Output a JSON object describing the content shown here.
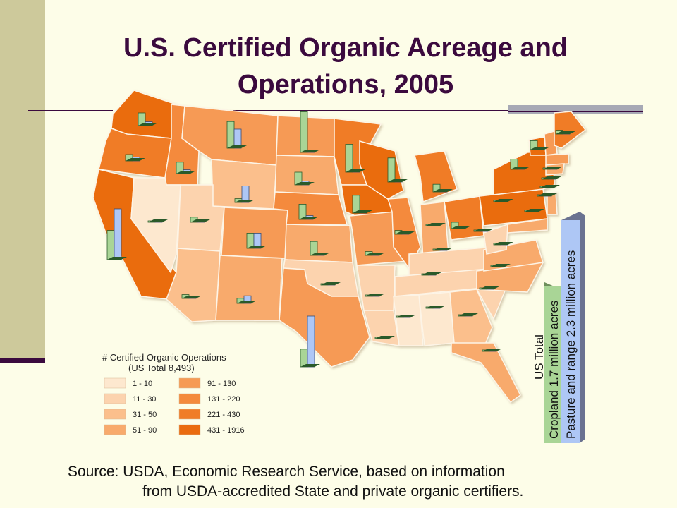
{
  "title_line1": "U.S. Certified Organic Acreage and",
  "title_line2": "Operations, 2005",
  "legend": {
    "title": "# Certified Organic Operations",
    "subtitle": "(US Total 8,493)",
    "bins": [
      {
        "label": "1 - 10",
        "color": "#fde8cf"
      },
      {
        "label": "11 - 30",
        "color": "#fcd3ae"
      },
      {
        "label": "31 - 50",
        "color": "#fbbf8c"
      },
      {
        "label": "51 - 90",
        "color": "#f8aa6c"
      },
      {
        "label": "91 - 130",
        "color": "#f69a54"
      },
      {
        "label": "131 - 220",
        "color": "#f48a3c"
      },
      {
        "label": "221 - 430",
        "color": "#f07c26"
      },
      {
        "label": "431 - 1916",
        "color": "#ea6c10"
      }
    ]
  },
  "us_total": {
    "heading": "US Total",
    "cropland": "Cropland 1.7 million acres",
    "pasture": "Pasture  and range 2.3 million acres"
  },
  "colors": {
    "cropland_bar": "#a9d596",
    "pasture_bar": "#aec7f5",
    "bar_base": "#2a5a2a",
    "total_frame": "#6a7290"
  },
  "states": [
    {
      "name": "Washington",
      "bin": 7,
      "cropland": 0.1,
      "pasture": 0.03
    },
    {
      "name": "Oregon",
      "bin": 6,
      "cropland": 0.05,
      "pasture": 0.03
    },
    {
      "name": "California",
      "bin": 7,
      "cropland": 0.23,
      "pasture": 0.4
    },
    {
      "name": "Idaho",
      "bin": 5,
      "cropland": 0.09,
      "pasture": 0.03
    },
    {
      "name": "Nevada",
      "bin": 0,
      "cropland": 0.003,
      "pasture": 0.003
    },
    {
      "name": "Montana",
      "bin": 4,
      "cropland": 0.21,
      "pasture": 0.15
    },
    {
      "name": "Wyoming",
      "bin": 2,
      "cropland": 0.03,
      "pasture": 0.13
    },
    {
      "name": "Utah",
      "bin": 1,
      "cropland": 0.04,
      "pasture": 0.02
    },
    {
      "name": "Colorado",
      "bin": 4,
      "cropland": 0.12,
      "pasture": 0.12
    },
    {
      "name": "Arizona",
      "bin": 2,
      "cropland": 0.03,
      "pasture": 0.01
    },
    {
      "name": "New Mexico",
      "bin": 3,
      "cropland": 0.04,
      "pasture": 0.06
    },
    {
      "name": "North Dakota",
      "bin": 4,
      "cropland": 0.32,
      "pasture": 0.02
    },
    {
      "name": "South Dakota",
      "bin": 3,
      "cropland": 0.1,
      "pasture": 0.03
    },
    {
      "name": "Nebraska",
      "bin": 5,
      "cropland": 0.12,
      "pasture": 0.03
    },
    {
      "name": "Kansas",
      "bin": 3,
      "cropland": 0.11,
      "pasture": 0.01
    },
    {
      "name": "Oklahoma",
      "bin": 1,
      "cropland": 0.01,
      "pasture": 0.01
    },
    {
      "name": "Texas",
      "bin": 4,
      "cropland": 0.14,
      "pasture": 0.4
    },
    {
      "name": "Minnesota",
      "bin": 6,
      "cropland": 0.22,
      "pasture": 0.02
    },
    {
      "name": "Iowa",
      "bin": 7,
      "cropland": 0.14,
      "pasture": 0.02
    },
    {
      "name": "Missouri",
      "bin": 4,
      "cropland": 0.03,
      "pasture": 0.02
    },
    {
      "name": "Arkansas",
      "bin": 1,
      "cropland": 0.01,
      "pasture": 0.01
    },
    {
      "name": "Louisiana",
      "bin": 1,
      "cropland": 0.005,
      "pasture": 0.005
    },
    {
      "name": "Wisconsin",
      "bin": 7,
      "cropland": 0.19,
      "pasture": 0.02
    },
    {
      "name": "Illinois",
      "bin": 5,
      "cropland": 0.03,
      "pasture": 0.01
    },
    {
      "name": "Michigan",
      "bin": 6,
      "cropland": 0.06,
      "pasture": 0.01
    },
    {
      "name": "Indiana",
      "bin": 3,
      "cropland": 0.01,
      "pasture": 0.005
    },
    {
      "name": "Ohio",
      "bin": 6,
      "cropland": 0.05,
      "pasture": 0.01
    },
    {
      "name": "Kentucky",
      "bin": 1,
      "cropland": 0.01,
      "pasture": 0.005
    },
    {
      "name": "Tennessee",
      "bin": 1,
      "cropland": 0.005,
      "pasture": 0.005
    },
    {
      "name": "Mississippi",
      "bin": 0,
      "cropland": 0.005,
      "pasture": 0.005
    },
    {
      "name": "Alabama",
      "bin": 0,
      "cropland": 0.005,
      "pasture": 0.005
    },
    {
      "name": "Georgia",
      "bin": 2,
      "cropland": 0.005,
      "pasture": 0.005
    },
    {
      "name": "Florida",
      "bin": 3,
      "cropland": 0.01,
      "pasture": 0.005
    },
    {
      "name": "South Carolina",
      "bin": 1,
      "cropland": 0.005,
      "pasture": 0.005
    },
    {
      "name": "North Carolina",
      "bin": 3,
      "cropland": 0.005,
      "pasture": 0.005
    },
    {
      "name": "Virginia",
      "bin": 3,
      "cropland": 0.005,
      "pasture": 0.005
    },
    {
      "name": "West Virginia",
      "bin": 1,
      "cropland": 0.005,
      "pasture": 0.005
    },
    {
      "name": "Pennsylvania",
      "bin": 7,
      "cropland": 0.01,
      "pasture": 0.005
    },
    {
      "name": "New York",
      "bin": 7,
      "cropland": 0.08,
      "pasture": 0.02
    },
    {
      "name": "Vermont",
      "bin": 7,
      "cropland": 0.07,
      "pasture": 0.02
    },
    {
      "name": "New Hampshire",
      "bin": 4,
      "cropland": 0.01,
      "pasture": 0.005
    },
    {
      "name": "Maine",
      "bin": 6,
      "cropland": 0.03,
      "pasture": 0.005
    },
    {
      "name": "Massachusetts",
      "bin": 4,
      "cropland": 0.005,
      "pasture": 0.005
    },
    {
      "name": "Connecticut",
      "bin": 3,
      "cropland": 0.005,
      "pasture": 0.005
    },
    {
      "name": "New Jersey",
      "bin": 3,
      "cropland": 0.005,
      "pasture": 0.005
    },
    {
      "name": "Maryland",
      "bin": 3,
      "cropland": 0.005,
      "pasture": 0.005
    }
  ],
  "source_line1": "Source: USDA, Economic Research Service, based on information",
  "source_line2": "from USDA-accredited State and private organic certifiers."
}
